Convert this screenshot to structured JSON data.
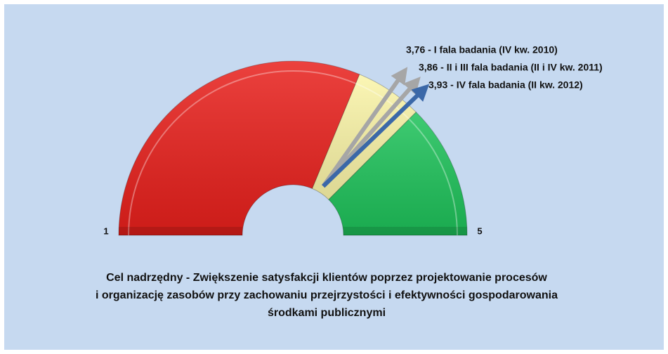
{
  "chart_data": {
    "type": "gauge",
    "xlim": [
      1,
      5
    ],
    "xticks": [
      1,
      5
    ],
    "bands": [
      {
        "from": 1,
        "to": 3.5,
        "color": "#e8201c"
      },
      {
        "from": 3.5,
        "to": 4,
        "color": "#fbf5a8"
      },
      {
        "from": 4,
        "to": 5,
        "color": "#1ec25a"
      }
    ],
    "series": [
      {
        "name": "3,76 - I fala badania (IV kw. 2010)",
        "value": 3.76,
        "color": "#a6a6a6"
      },
      {
        "name": "3,86 - II i III fala badania (II i IV kw. 2011)",
        "value": 3.86,
        "color": "#a6a6a6"
      },
      {
        "name": "3,93 - IV fala badania (II kw. 2012)",
        "value": 3.93,
        "color": "#3b68a8"
      }
    ],
    "title": [
      "Cel nadrzędny - Zwiększenie satysfakcji klientów poprzez projektowanie procesów",
      "i organizację zasobów przy zachowaniu przejrzystości i efektywności gospodarowania",
      "środkami publicznymi"
    ]
  }
}
